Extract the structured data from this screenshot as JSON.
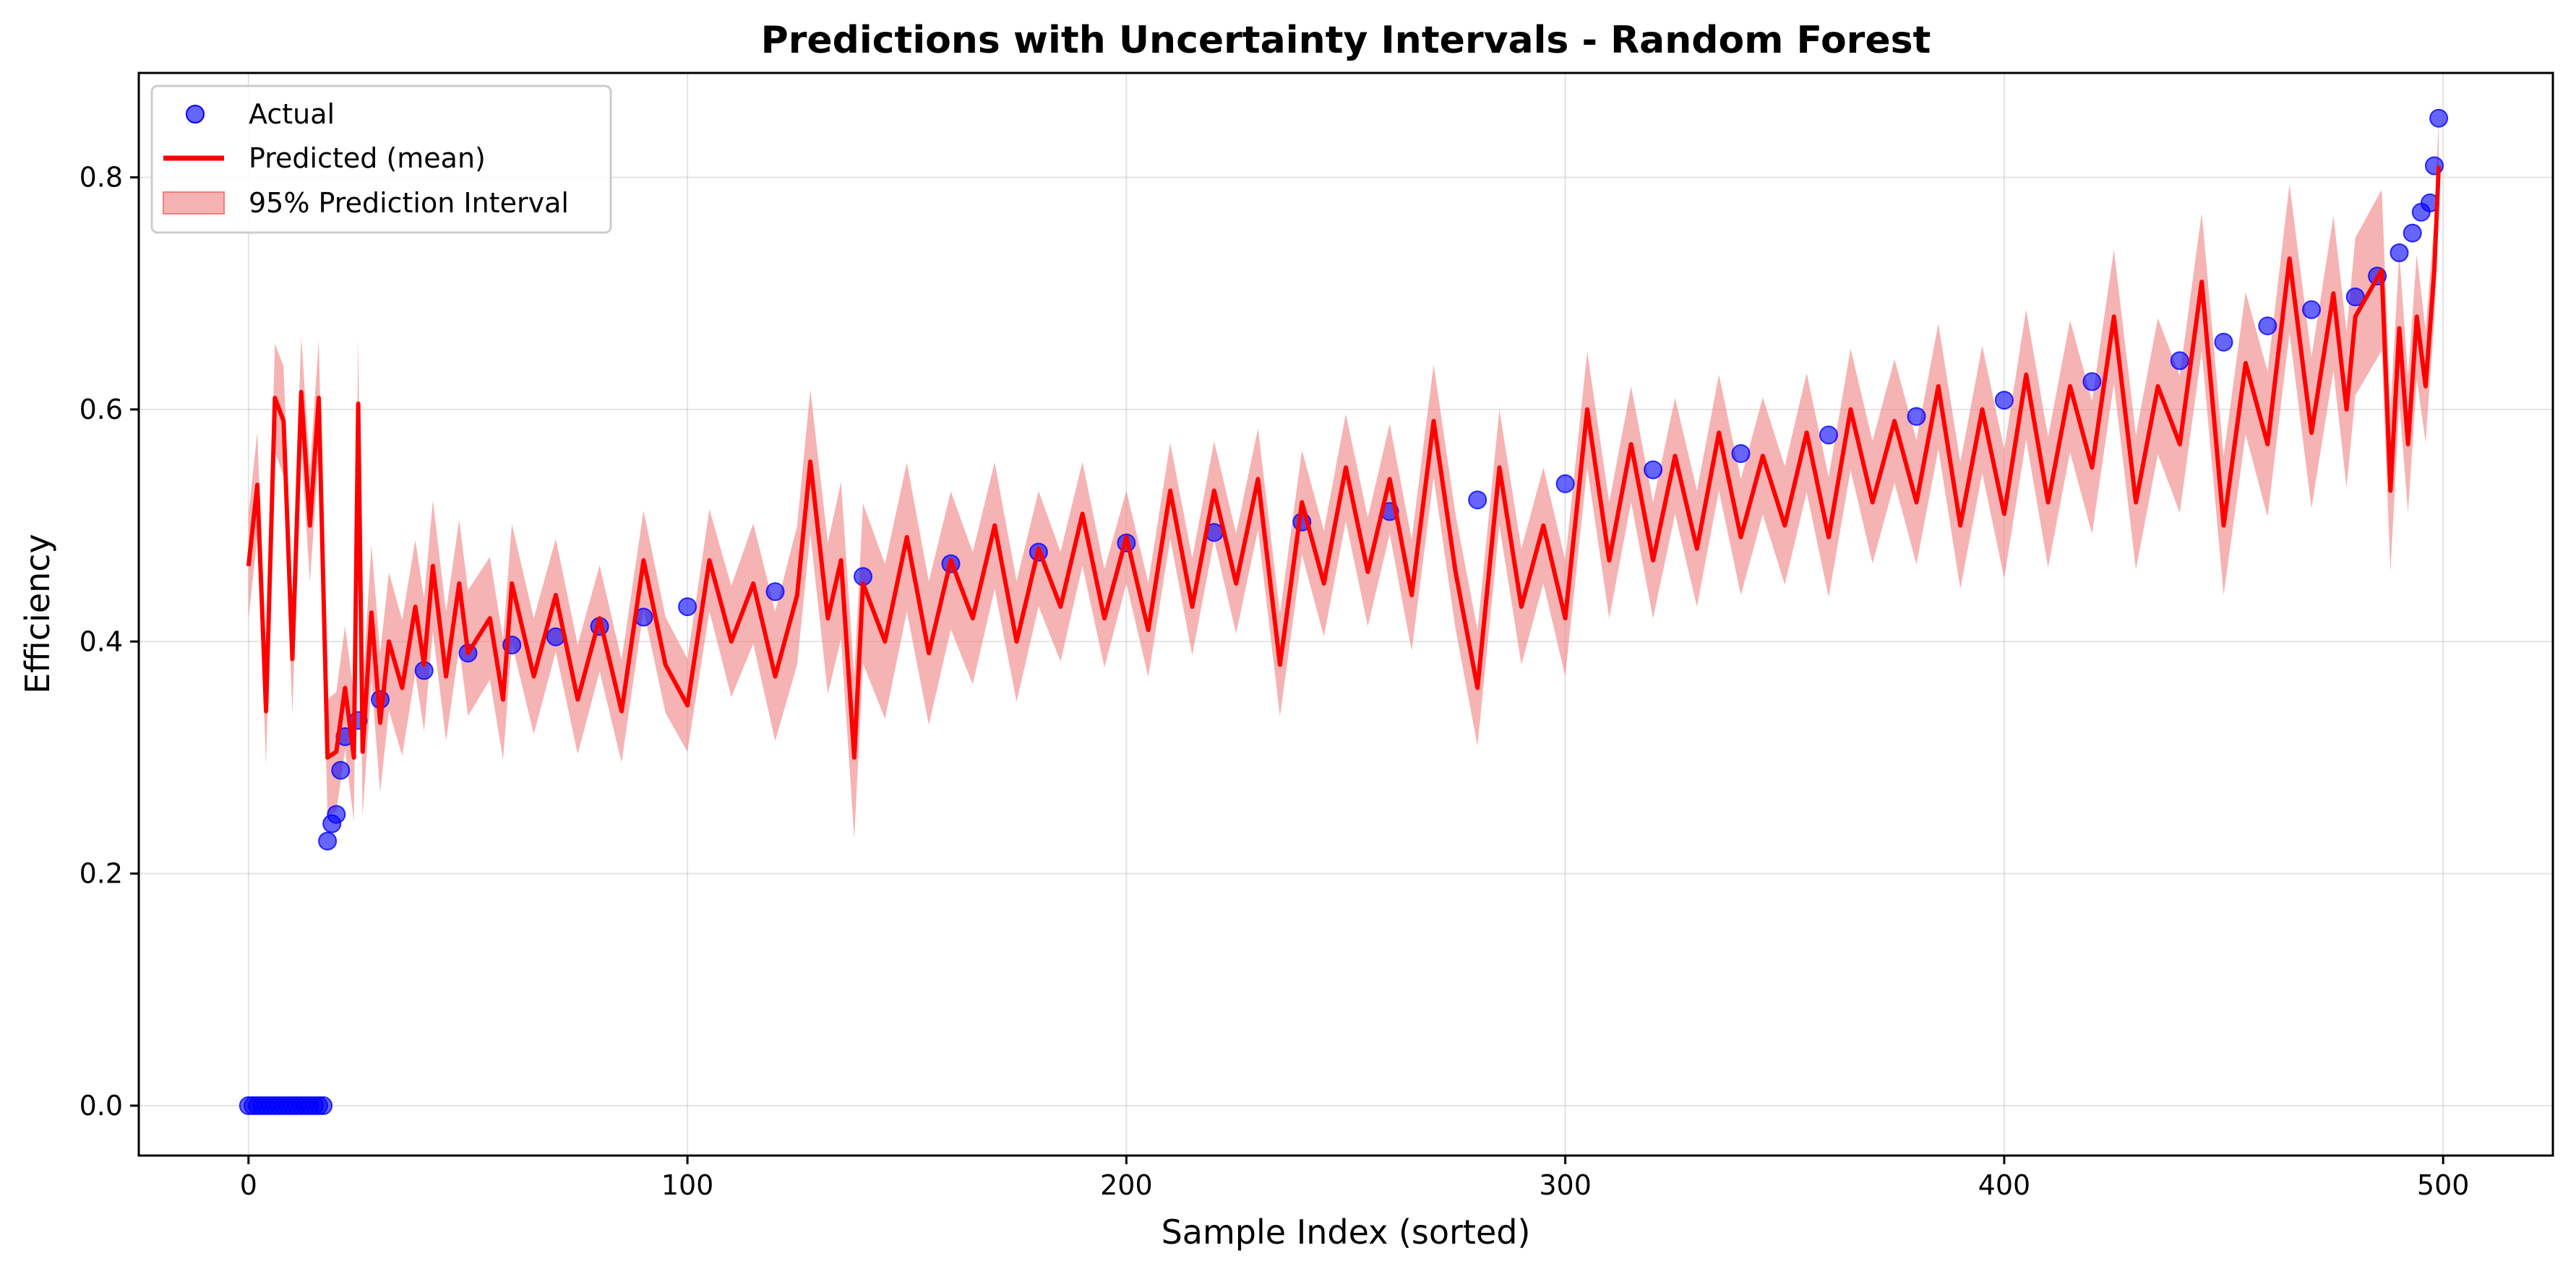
{
  "chart_data": {
    "type": "line",
    "title": "Predictions with Uncertainty Intervals - Random Forest",
    "xlabel": "Sample Index (sorted)",
    "ylabel": "Efficiency",
    "xlim": [
      -25,
      525
    ],
    "ylim": [
      -0.043,
      0.89
    ],
    "x_ticks": [
      0,
      100,
      200,
      300,
      400,
      500
    ],
    "y_ticks": [
      0.0,
      0.2,
      0.4,
      0.6,
      0.8
    ],
    "x_tick_labels": [
      "0",
      "100",
      "200",
      "300",
      "400",
      "500"
    ],
    "y_tick_labels": [
      "0.0",
      "0.2",
      "0.4",
      "0.6",
      "0.8"
    ],
    "grid": true,
    "legend_position": "top-left",
    "colors": {
      "actual": "#0000ff",
      "predicted": "#ff0000",
      "interval": "#f08080"
    },
    "series": [
      {
        "name": "Actual",
        "kind": "scatter",
        "points": [
          [
            0,
            0
          ],
          [
            1,
            0
          ],
          [
            2,
            0
          ],
          [
            3,
            0
          ],
          [
            4,
            0
          ],
          [
            5,
            0
          ],
          [
            6,
            0
          ],
          [
            7,
            0
          ],
          [
            8,
            0
          ],
          [
            9,
            0
          ],
          [
            10,
            0
          ],
          [
            11,
            0
          ],
          [
            12,
            0
          ],
          [
            13,
            0
          ],
          [
            14,
            0
          ],
          [
            15,
            0
          ],
          [
            16,
            0
          ],
          [
            17,
            0
          ],
          [
            18,
            0.228
          ],
          [
            19,
            0.243
          ],
          [
            20,
            0.251
          ],
          [
            21,
            0.289
          ],
          [
            22,
            0.318
          ],
          [
            25,
            0.332
          ],
          [
            30,
            0.35
          ],
          [
            40,
            0.375
          ],
          [
            50,
            0.39
          ],
          [
            60,
            0.397
          ],
          [
            70,
            0.404
          ],
          [
            80,
            0.413
          ],
          [
            90,
            0.421
          ],
          [
            100,
            0.43
          ],
          [
            120,
            0.443
          ],
          [
            140,
            0.456
          ],
          [
            160,
            0.467
          ],
          [
            180,
            0.477
          ],
          [
            200,
            0.485
          ],
          [
            220,
            0.494
          ],
          [
            240,
            0.503
          ],
          [
            260,
            0.512
          ],
          [
            280,
            0.522
          ],
          [
            300,
            0.536
          ],
          [
            320,
            0.548
          ],
          [
            340,
            0.562
          ],
          [
            360,
            0.578
          ],
          [
            380,
            0.594
          ],
          [
            400,
            0.608
          ],
          [
            420,
            0.624
          ],
          [
            440,
            0.642
          ],
          [
            450,
            0.658
          ],
          [
            460,
            0.672
          ],
          [
            470,
            0.686
          ],
          [
            480,
            0.697
          ],
          [
            485,
            0.715
          ],
          [
            490,
            0.735
          ],
          [
            493,
            0.752
          ],
          [
            495,
            0.77
          ],
          [
            497,
            0.778
          ],
          [
            498,
            0.81
          ],
          [
            499,
            0.851
          ]
        ]
      },
      {
        "name": "Predicted (mean)",
        "kind": "line",
        "points": [
          [
            0,
            0.465
          ],
          [
            2,
            0.535
          ],
          [
            4,
            0.34
          ],
          [
            6,
            0.61
          ],
          [
            8,
            0.59
          ],
          [
            10,
            0.385
          ],
          [
            12,
            0.615
          ],
          [
            14,
            0.5
          ],
          [
            16,
            0.61
          ],
          [
            18,
            0.3
          ],
          [
            20,
            0.305
          ],
          [
            22,
            0.36
          ],
          [
            24,
            0.3
          ],
          [
            25,
            0.605
          ],
          [
            26,
            0.305
          ],
          [
            28,
            0.425
          ],
          [
            30,
            0.33
          ],
          [
            32,
            0.4
          ],
          [
            35,
            0.36
          ],
          [
            38,
            0.43
          ],
          [
            40,
            0.38
          ],
          [
            42,
            0.465
          ],
          [
            45,
            0.37
          ],
          [
            48,
            0.45
          ],
          [
            50,
            0.39
          ],
          [
            55,
            0.42
          ],
          [
            58,
            0.35
          ],
          [
            60,
            0.45
          ],
          [
            65,
            0.37
          ],
          [
            70,
            0.44
          ],
          [
            75,
            0.35
          ],
          [
            80,
            0.42
          ],
          [
            85,
            0.34
          ],
          [
            90,
            0.47
          ],
          [
            95,
            0.38
          ],
          [
            100,
            0.345
          ],
          [
            105,
            0.47
          ],
          [
            110,
            0.4
          ],
          [
            115,
            0.45
          ],
          [
            120,
            0.37
          ],
          [
            125,
            0.44
          ],
          [
            128,
            0.555
          ],
          [
            132,
            0.42
          ],
          [
            135,
            0.47
          ],
          [
            138,
            0.3
          ],
          [
            140,
            0.45
          ],
          [
            145,
            0.4
          ],
          [
            150,
            0.49
          ],
          [
            155,
            0.39
          ],
          [
            160,
            0.47
          ],
          [
            165,
            0.42
          ],
          [
            170,
            0.5
          ],
          [
            175,
            0.4
          ],
          [
            180,
            0.48
          ],
          [
            185,
            0.43
          ],
          [
            190,
            0.51
          ],
          [
            195,
            0.42
          ],
          [
            200,
            0.49
          ],
          [
            205,
            0.41
          ],
          [
            210,
            0.53
          ],
          [
            215,
            0.43
          ],
          [
            220,
            0.53
          ],
          [
            225,
            0.45
          ],
          [
            230,
            0.54
          ],
          [
            235,
            0.38
          ],
          [
            240,
            0.52
          ],
          [
            245,
            0.45
          ],
          [
            250,
            0.55
          ],
          [
            255,
            0.46
          ],
          [
            260,
            0.54
          ],
          [
            265,
            0.44
          ],
          [
            270,
            0.59
          ],
          [
            275,
            0.46
          ],
          [
            280,
            0.36
          ],
          [
            285,
            0.55
          ],
          [
            290,
            0.43
          ],
          [
            295,
            0.5
          ],
          [
            300,
            0.42
          ],
          [
            305,
            0.6
          ],
          [
            310,
            0.47
          ],
          [
            315,
            0.57
          ],
          [
            320,
            0.47
          ],
          [
            325,
            0.56
          ],
          [
            330,
            0.48
          ],
          [
            335,
            0.58
          ],
          [
            340,
            0.49
          ],
          [
            345,
            0.56
          ],
          [
            350,
            0.5
          ],
          [
            355,
            0.58
          ],
          [
            360,
            0.49
          ],
          [
            365,
            0.6
          ],
          [
            370,
            0.52
          ],
          [
            375,
            0.59
          ],
          [
            380,
            0.52
          ],
          [
            385,
            0.62
          ],
          [
            390,
            0.5
          ],
          [
            395,
            0.6
          ],
          [
            400,
            0.51
          ],
          [
            405,
            0.63
          ],
          [
            410,
            0.52
          ],
          [
            415,
            0.62
          ],
          [
            420,
            0.55
          ],
          [
            425,
            0.68
          ],
          [
            430,
            0.52
          ],
          [
            435,
            0.62
          ],
          [
            440,
            0.57
          ],
          [
            445,
            0.71
          ],
          [
            450,
            0.5
          ],
          [
            455,
            0.64
          ],
          [
            460,
            0.57
          ],
          [
            465,
            0.73
          ],
          [
            470,
            0.58
          ],
          [
            475,
            0.7
          ],
          [
            478,
            0.6
          ],
          [
            480,
            0.68
          ],
          [
            483,
            0.7
          ],
          [
            486,
            0.72
          ],
          [
            488,
            0.53
          ],
          [
            490,
            0.67
          ],
          [
            492,
            0.57
          ],
          [
            494,
            0.68
          ],
          [
            496,
            0.62
          ],
          [
            498,
            0.72
          ],
          [
            499,
            0.81
          ]
        ]
      },
      {
        "name": "95% Prediction Interval",
        "kind": "band",
        "width": [
          [
            0,
            0.045
          ],
          [
            18,
            0.05
          ],
          [
            30,
            0.06
          ],
          [
            100,
            0.04
          ],
          [
            138,
            0.07
          ],
          [
            200,
            0.04
          ],
          [
            280,
            0.05
          ],
          [
            340,
            0.05
          ],
          [
            450,
            0.06
          ],
          [
            488,
            0.07
          ],
          [
            499,
            0.04
          ]
        ]
      }
    ]
  }
}
